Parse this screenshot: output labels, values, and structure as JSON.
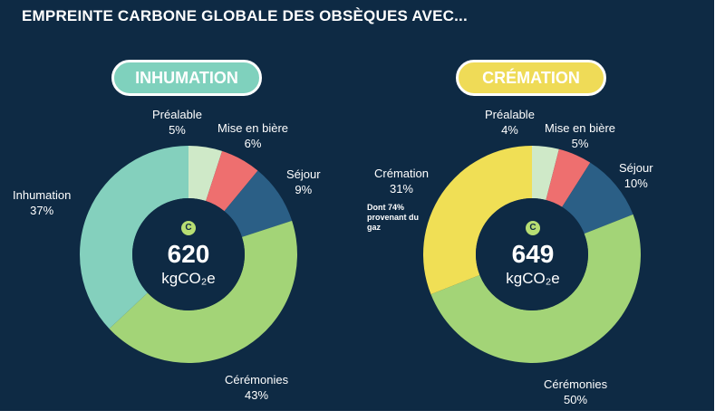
{
  "title": "EMPREINTE CARBONE GLOBALE DES OBSÈQUES AVEC...",
  "badge_symbol": "C",
  "chart_data": [
    {
      "type": "pie",
      "title": "INHUMATION",
      "total": "620",
      "unit": "kgCO₂e",
      "slices": [
        {
          "label": "Préalable",
          "pct": "5%",
          "value": 5,
          "color": "#cfe9c8"
        },
        {
          "label": "Mise en bière",
          "pct": "6%",
          "value": 6,
          "color": "#ee6f6f"
        },
        {
          "label": "Séjour",
          "pct": "9%",
          "value": 9,
          "color": "#2b5f86"
        },
        {
          "label": "Cérémonies",
          "pct": "43%",
          "value": 43,
          "color": "#a3d477"
        },
        {
          "label": "Inhumation",
          "pct": "37%",
          "value": 37,
          "color": "#84d0bd"
        }
      ]
    },
    {
      "type": "pie",
      "title": "CRÉMATION",
      "total": "649",
      "unit": "kgCO₂e",
      "note": "Dont 74% provenant du gaz",
      "slices": [
        {
          "label": "Préalable",
          "pct": "4%",
          "value": 4,
          "color": "#cfe9c8"
        },
        {
          "label": "Mise en bière",
          "pct": "5%",
          "value": 5,
          "color": "#ee6f6f"
        },
        {
          "label": "Séjour",
          "pct": "10%",
          "value": 10,
          "color": "#2b5f86"
        },
        {
          "label": "Cérémonies",
          "pct": "50%",
          "value": 50,
          "color": "#a3d477"
        },
        {
          "label": "Crémation",
          "pct": "31%",
          "value": 31,
          "color": "#f0df55"
        }
      ]
    }
  ]
}
